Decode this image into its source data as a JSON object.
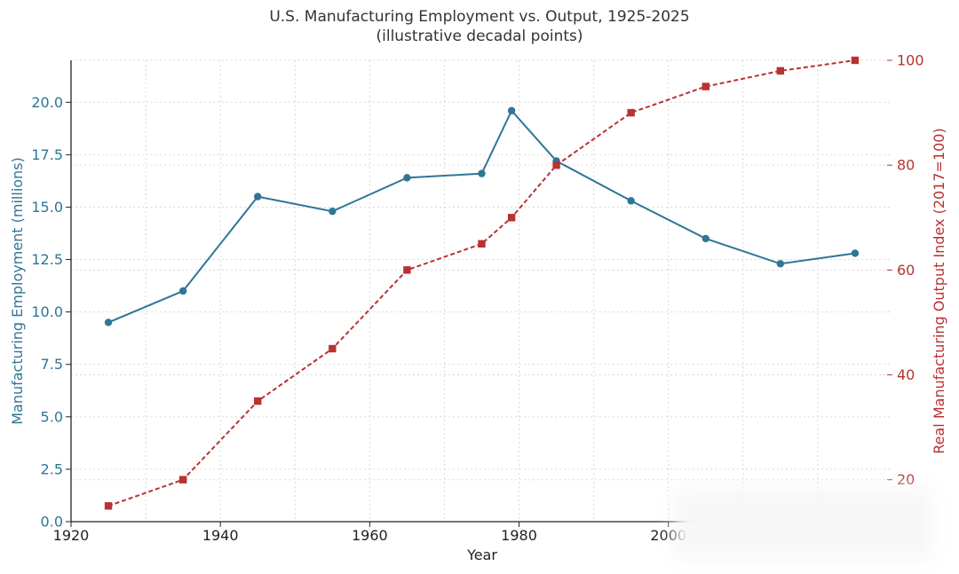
{
  "chart_data": {
    "type": "line",
    "title": "U.S. Manufacturing Employment vs. Output, 1925-2025",
    "subtitle": "(illustrative decadal points)",
    "xlabel": "Year",
    "ylabel": "Manufacturing Employment (millions)",
    "y2label": "Real Manufacturing Output Index (2017=100)",
    "xlim": [
      1920,
      2030
    ],
    "ylim": [
      0,
      22
    ],
    "y2lim": [
      10,
      110
    ],
    "xticks": [
      "1920",
      "1940",
      "1960",
      "1980",
      "2000"
    ],
    "yticks": [
      "0.0",
      "2.5",
      "5.0",
      "7.5",
      "10.0",
      "12.5",
      "15.0",
      "17.5",
      "20.0"
    ],
    "y2ticks": [
      "20",
      "40",
      "60",
      "80",
      "100"
    ],
    "grid": true,
    "colors": {
      "employment": "#2f7596",
      "output": "#b83232",
      "axis": "#222222",
      "grid": "#d9d9d9"
    },
    "series": [
      {
        "axis": "left",
        "style": "solid-circle",
        "x": [
          1925,
          1935,
          1945,
          1955,
          1965,
          1975,
          1979,
          1985,
          1995,
          2005,
          2015,
          2025
        ],
        "y": [
          9.5,
          11.0,
          15.5,
          14.8,
          16.4,
          16.6,
          19.6,
          17.2,
          15.3,
          13.5,
          12.3,
          12.8
        ]
      },
      {
        "axis": "right",
        "style": "dashed-square",
        "x": [
          1925,
          1935,
          1945,
          1955,
          1965,
          1975,
          1979,
          1985,
          1995,
          2005,
          2015,
          2025
        ],
        "y": [
          15,
          20,
          35,
          45,
          60,
          65,
          70,
          80,
          90,
          95,
          98,
          100
        ]
      }
    ]
  }
}
